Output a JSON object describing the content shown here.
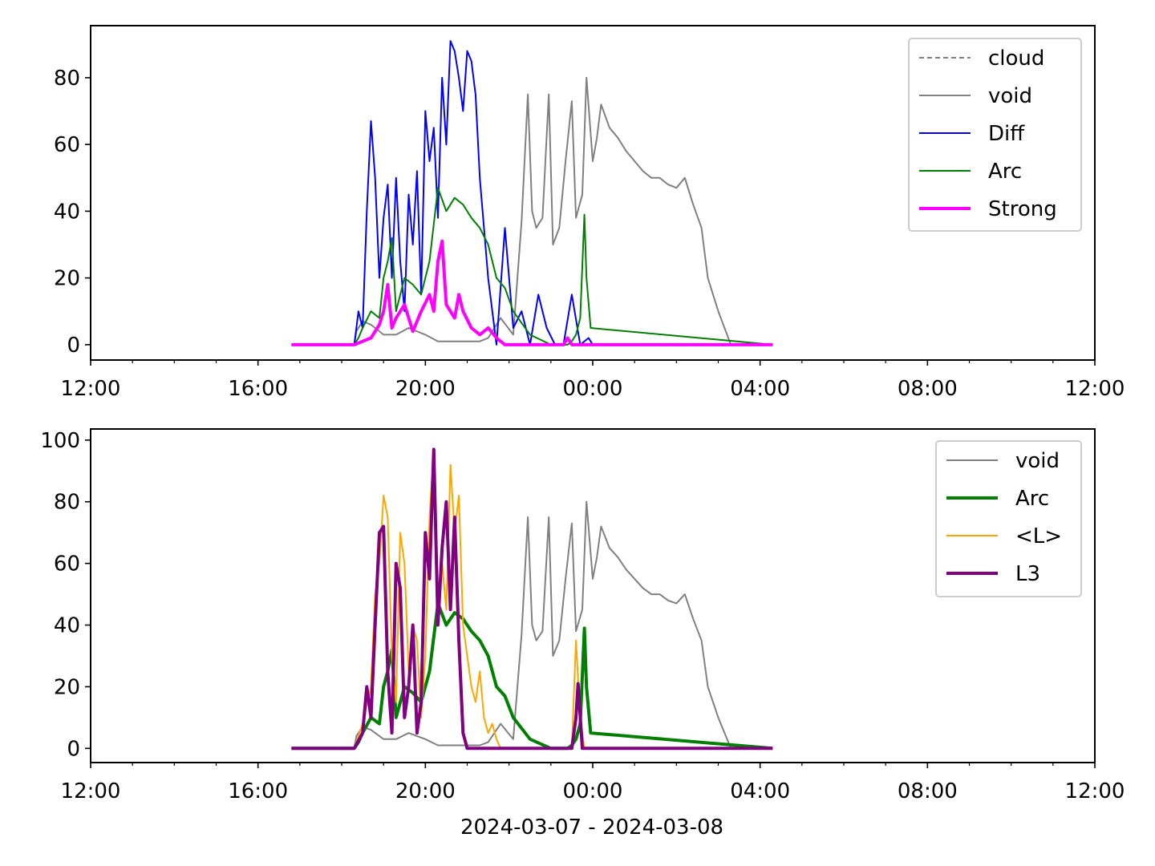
{
  "figure": {
    "xlabel": "2024-03-07 - 2024-03-08"
  },
  "colors": {
    "cloud": "#808080",
    "void": "#808080",
    "Diff": "#0000ff",
    "Arc": "#008000",
    "Strong": "#ff00ff",
    "<L>": "#ffa500",
    "L3": "#800080"
  },
  "chart_data": [
    {
      "type": "line",
      "x_axis": {
        "ticks": [
          "12:00",
          "16:00",
          "20:00",
          "00:00",
          "04:00",
          "08:00",
          "12:00"
        ],
        "range_hours": [
          0,
          24
        ]
      },
      "ylim": [
        -4.6,
        95.6
      ],
      "yticks": [
        0,
        20,
        40,
        60,
        80
      ],
      "legend_position": "top-right",
      "series": [
        {
          "name": "cloud",
          "style": "dashed",
          "x": [],
          "y": []
        },
        {
          "name": "void",
          "style": "solid",
          "x": [
            4.8,
            6.3,
            6.35,
            6.5,
            6.7,
            7.0,
            7.3,
            7.6,
            8.0,
            8.3,
            8.8,
            9.3,
            9.5,
            9.8,
            10.1,
            10.3,
            10.45,
            10.55,
            10.65,
            10.8,
            10.95,
            11.05,
            11.2,
            11.35,
            11.5,
            11.6,
            11.75,
            11.85,
            12.0,
            12.1,
            12.2,
            12.4,
            12.6,
            12.8,
            13.0,
            13.2,
            13.4,
            13.6,
            13.8,
            14.0,
            14.2,
            14.4,
            14.6,
            14.75,
            15.0,
            15.3,
            15.6,
            15.8,
            16.3
          ],
          "y": [
            0,
            0,
            4,
            7,
            6,
            3,
            3,
            5,
            3,
            1,
            1,
            1,
            2,
            8,
            3,
            37,
            75,
            40,
            35,
            38,
            75,
            30,
            35,
            55,
            73,
            38,
            45,
            80,
            55,
            62,
            72,
            65,
            62,
            58,
            55,
            52,
            50,
            50,
            48,
            47,
            50,
            42,
            35,
            20,
            10,
            0,
            0,
            0,
            0
          ]
        },
        {
          "name": "Diff",
          "style": "solid",
          "x": [
            4.8,
            6.3,
            6.4,
            6.5,
            6.6,
            6.7,
            6.8,
            6.9,
            7.0,
            7.1,
            7.2,
            7.3,
            7.4,
            7.5,
            7.6,
            7.7,
            7.8,
            7.9,
            8.0,
            8.1,
            8.2,
            8.3,
            8.4,
            8.5,
            8.6,
            8.7,
            8.8,
            8.9,
            9.0,
            9.1,
            9.2,
            9.3,
            9.5,
            9.7,
            9.9,
            10.1,
            10.3,
            10.5,
            10.7,
            10.9,
            11.1,
            11.3,
            11.5,
            11.7,
            11.9,
            12.0,
            12.1
          ],
          "y": [
            0,
            0,
            10,
            5,
            40,
            67,
            50,
            20,
            38,
            48,
            20,
            50,
            25,
            10,
            45,
            30,
            52,
            15,
            70,
            55,
            65,
            38,
            80,
            60,
            91,
            88,
            80,
            70,
            88,
            85,
            75,
            50,
            20,
            0,
            35,
            5,
            10,
            0,
            15,
            5,
            0,
            0,
            15,
            0,
            2,
            0,
            0
          ]
        },
        {
          "name": "Arc",
          "style": "solid",
          "x": [
            4.8,
            6.3,
            6.4,
            6.5,
            6.7,
            6.9,
            7.0,
            7.1,
            7.2,
            7.3,
            7.5,
            7.7,
            7.9,
            8.1,
            8.3,
            8.5,
            8.7,
            8.9,
            9.1,
            9.3,
            9.5,
            9.7,
            9.9,
            10.1,
            10.5,
            11.0,
            11.4,
            11.5,
            11.6,
            11.7,
            11.8,
            11.85,
            11.95,
            16.3
          ],
          "y": [
            0,
            0,
            2,
            5,
            10,
            8,
            20,
            25,
            32,
            10,
            20,
            18,
            15,
            25,
            47,
            40,
            44,
            42,
            38,
            35,
            30,
            20,
            17,
            10,
            3,
            0,
            0,
            1,
            3,
            8,
            39,
            20,
            5,
            0
          ]
        },
        {
          "name": "Strong",
          "style": "thick",
          "x": [
            4.8,
            6.3,
            6.7,
            6.9,
            7.0,
            7.1,
            7.2,
            7.3,
            7.5,
            7.7,
            7.9,
            8.1,
            8.2,
            8.3,
            8.4,
            8.5,
            8.7,
            8.8,
            8.9,
            9.1,
            9.3,
            9.5,
            9.7,
            9.9,
            10.0,
            11.3,
            11.4,
            11.5,
            16.3
          ],
          "y": [
            0,
            0,
            2,
            6,
            10,
            18,
            5,
            8,
            12,
            4,
            10,
            15,
            10,
            25,
            31,
            12,
            8,
            15,
            10,
            5,
            3,
            5,
            2,
            0,
            0,
            0,
            2,
            0,
            0
          ]
        }
      ]
    },
    {
      "type": "line",
      "x_axis": {
        "ticks": [
          "12:00",
          "16:00",
          "20:00",
          "00:00",
          "04:00",
          "08:00",
          "12:00"
        ],
        "range_hours": [
          0,
          24
        ]
      },
      "ylim": [
        -4.6,
        103.6
      ],
      "yticks": [
        0,
        20,
        40,
        60,
        80,
        100
      ],
      "legend_position": "top-right",
      "series": [
        {
          "name": "void",
          "style": "solid",
          "x": [
            4.8,
            6.3,
            6.35,
            6.5,
            6.7,
            7.0,
            7.3,
            7.6,
            8.0,
            8.3,
            8.8,
            9.3,
            9.5,
            9.8,
            10.1,
            10.3,
            10.45,
            10.55,
            10.65,
            10.8,
            10.95,
            11.05,
            11.2,
            11.35,
            11.5,
            11.6,
            11.75,
            11.85,
            12.0,
            12.1,
            12.2,
            12.4,
            12.6,
            12.8,
            13.0,
            13.2,
            13.4,
            13.6,
            13.8,
            14.0,
            14.2,
            14.4,
            14.6,
            14.75,
            15.0,
            15.3,
            15.6,
            15.8,
            16.3
          ],
          "y": [
            0,
            0,
            4,
            7,
            6,
            3,
            3,
            5,
            3,
            1,
            1,
            1,
            2,
            8,
            3,
            37,
            75,
            40,
            35,
            38,
            75,
            30,
            35,
            55,
            73,
            38,
            45,
            80,
            55,
            62,
            72,
            65,
            62,
            58,
            55,
            52,
            50,
            50,
            48,
            47,
            50,
            42,
            35,
            20,
            10,
            0,
            0,
            0,
            0
          ]
        },
        {
          "name": "Arc",
          "style": "thick",
          "x": [
            4.8,
            6.3,
            6.4,
            6.5,
            6.7,
            6.9,
            7.0,
            7.1,
            7.2,
            7.3,
            7.5,
            7.7,
            7.9,
            8.1,
            8.3,
            8.5,
            8.7,
            8.9,
            9.1,
            9.3,
            9.5,
            9.7,
            9.9,
            10.1,
            10.5,
            11.0,
            11.4,
            11.5,
            11.6,
            11.7,
            11.8,
            11.85,
            11.95,
            16.3
          ],
          "y": [
            0,
            0,
            2,
            5,
            10,
            8,
            20,
            25,
            32,
            10,
            20,
            18,
            15,
            25,
            47,
            40,
            44,
            42,
            38,
            35,
            30,
            20,
            17,
            10,
            3,
            0,
            0,
            1,
            3,
            8,
            39,
            20,
            5,
            0
          ]
        },
        {
          "name": "<L>",
          "style": "solid",
          "x": [
            4.8,
            6.3,
            6.5,
            6.7,
            6.8,
            6.9,
            7.0,
            7.1,
            7.2,
            7.3,
            7.4,
            7.5,
            7.6,
            7.7,
            7.8,
            7.9,
            8.0,
            8.1,
            8.2,
            8.3,
            8.4,
            8.5,
            8.6,
            8.7,
            8.8,
            8.9,
            9.0,
            9.1,
            9.2,
            9.3,
            9.4,
            9.5,
            9.6,
            9.7,
            9.8,
            9.9,
            10.0,
            11.5,
            11.6,
            11.7,
            11.8,
            16.3
          ],
          "y": [
            0,
            0,
            8,
            20,
            50,
            60,
            82,
            75,
            30,
            15,
            70,
            60,
            25,
            40,
            35,
            10,
            30,
            75,
            97,
            50,
            60,
            45,
            92,
            70,
            82,
            40,
            30,
            20,
            15,
            25,
            10,
            5,
            8,
            3,
            0,
            0,
            0,
            0,
            35,
            10,
            0,
            0
          ]
        },
        {
          "name": "L3",
          "style": "thick",
          "x": [
            4.8,
            6.3,
            6.5,
            6.6,
            6.7,
            6.8,
            6.9,
            7.0,
            7.1,
            7.2,
            7.3,
            7.4,
            7.5,
            7.6,
            7.7,
            7.8,
            7.9,
            8.0,
            8.1,
            8.2,
            8.3,
            8.4,
            8.5,
            8.6,
            8.7,
            8.8,
            8.9,
            9.0,
            9.2,
            11.5,
            11.6,
            11.65,
            11.75,
            16.3
          ],
          "y": [
            0,
            0,
            5,
            20,
            10,
            40,
            70,
            72,
            25,
            5,
            60,
            52,
            10,
            20,
            40,
            5,
            15,
            70,
            55,
            97,
            40,
            65,
            80,
            45,
            75,
            35,
            5,
            0,
            0,
            0,
            10,
            21,
            0,
            0
          ]
        }
      ]
    }
  ]
}
